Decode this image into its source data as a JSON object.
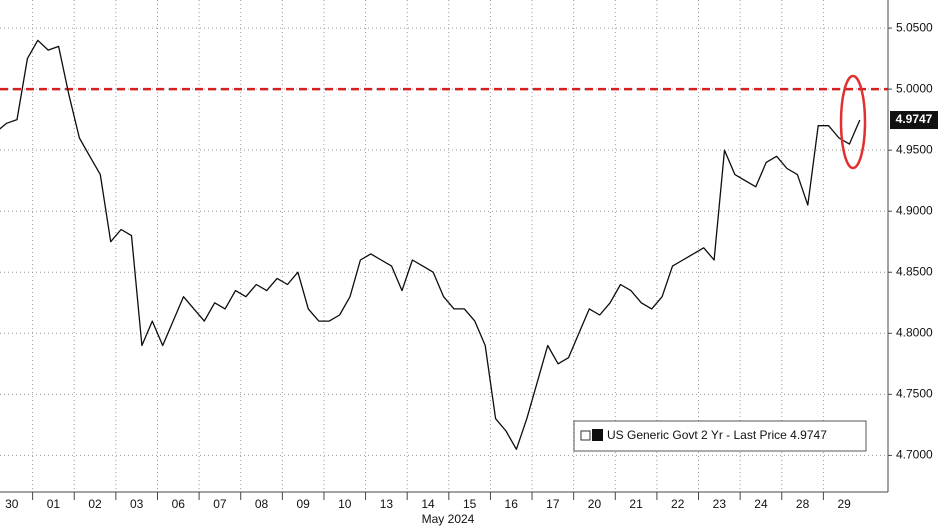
{
  "chart_data": {
    "type": "line",
    "categories": [
      null,
      "30",
      null,
      null,
      null,
      "01",
      null,
      null,
      null,
      "02",
      null,
      null,
      null,
      "03",
      null,
      null,
      null,
      "06",
      null,
      null,
      null,
      "07",
      null,
      null,
      null,
      "08",
      null,
      null,
      null,
      "09",
      null,
      null,
      null,
      "10",
      null,
      null,
      null,
      "13",
      null,
      null,
      null,
      "14",
      null,
      null,
      null,
      "15",
      null,
      null,
      null,
      "16",
      null,
      null,
      null,
      "17",
      null,
      null,
      null,
      "20",
      null,
      null,
      null,
      "21",
      null,
      null,
      null,
      "22",
      null,
      null,
      null,
      "23",
      null,
      null,
      null,
      "24",
      null,
      null,
      null,
      "28",
      null,
      null,
      null,
      "29",
      null,
      null
    ],
    "series": [
      {
        "name": "US Generic Govt 2 Yr - Last Price 4.9747",
        "color": "#0d0d0d",
        "values": [
          4.965,
          4.972,
          4.975,
          5.025,
          5.04,
          5.032,
          5.035,
          4.995,
          4.96,
          4.945,
          4.93,
          4.875,
          4.885,
          4.88,
          4.79,
          4.81,
          4.79,
          4.81,
          4.83,
          4.82,
          4.81,
          4.825,
          4.82,
          4.835,
          4.83,
          4.84,
          4.835,
          4.845,
          4.84,
          4.85,
          4.82,
          4.81,
          4.81,
          4.815,
          4.83,
          4.86,
          4.865,
          4.86,
          4.855,
          4.835,
          4.86,
          4.855,
          4.85,
          4.83,
          4.82,
          4.82,
          4.81,
          4.79,
          4.73,
          4.72,
          4.705,
          4.73,
          4.76,
          4.79,
          4.775,
          4.78,
          4.8,
          4.82,
          4.815,
          4.825,
          4.84,
          4.835,
          4.825,
          4.82,
          4.83,
          4.855,
          4.86,
          4.865,
          4.87,
          4.86,
          4.95,
          4.93,
          4.925,
          4.92,
          4.94,
          4.945,
          4.935,
          4.93,
          4.905,
          4.97,
          4.97,
          4.96,
          4.955,
          4.9747
        ]
      }
    ],
    "xlabel": "May 2024",
    "last_price": 4.9747,
    "reference_line": 5.0,
    "reference_color": "#d42020",
    "ylim": [
      4.67,
      5.073
    ],
    "yticks": [
      {
        "value": 4.7,
        "label": "4.7000"
      },
      {
        "value": 4.75,
        "label": "4.7500"
      },
      {
        "value": 4.8,
        "label": "4.8000"
      },
      {
        "value": 4.85,
        "label": "4.8500"
      },
      {
        "value": 4.9,
        "label": "4.9000"
      },
      {
        "value": 4.95,
        "label": "4.9500"
      },
      {
        "value": 5.0,
        "label": "5.0000"
      },
      {
        "value": 5.05,
        "label": "5.0500"
      }
    ],
    "grid": true
  }
}
